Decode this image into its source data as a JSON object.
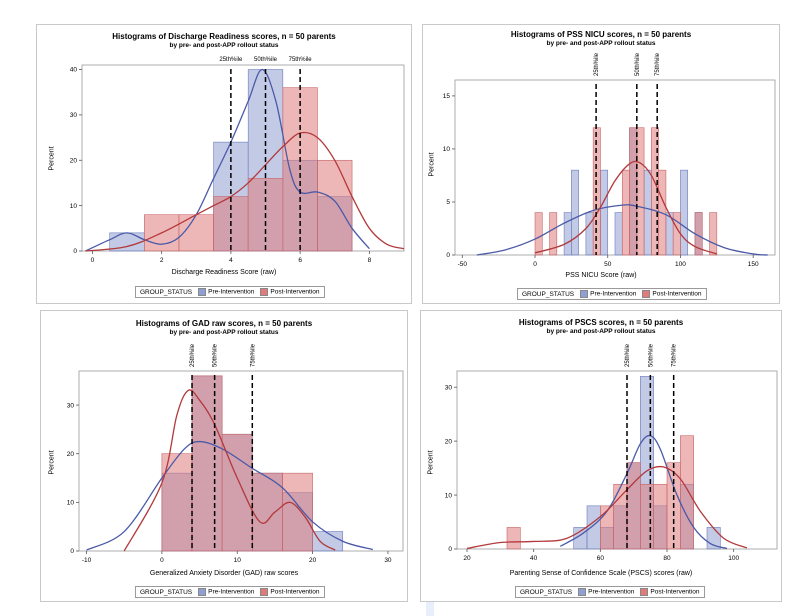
{
  "legend": {
    "group_label": "GROUP_STATUS",
    "pre_label": "Pre-Intervention",
    "post_label": "Post-Intervention"
  },
  "colors": {
    "pre_fill": "#8f9fd1",
    "pre_line": "#4a5aa8",
    "post_fill": "#e07b7b",
    "post_line": "#b3393b",
    "overlap": "#a05871"
  },
  "chart_data": [
    {
      "type": "bar",
      "title": "Histograms of Discharge Readiness scores, n = 50 parents",
      "subtitle": "by pre- and post-APP rollout status",
      "xlabel": "Discharge Readiness Score (raw)",
      "ylabel": "Percent",
      "xlim": [
        -0.3,
        9.0
      ],
      "ylim": [
        0,
        41
      ],
      "xticks": [
        0,
        2,
        4,
        6,
        8
      ],
      "yticks": [
        0,
        10,
        20,
        30,
        40
      ],
      "percentile_labels": [
        "25th%ile",
        "50th%ile",
        "75th%ile"
      ],
      "percentile_label_orientation": "horizontal",
      "percentiles": [
        4,
        5,
        6
      ],
      "series": [
        {
          "name": "Pre-Intervention",
          "bins": [
            [
              0.5,
              1.5,
              4
            ],
            [
              1.5,
              2.5,
              0
            ],
            [
              2.5,
              3.5,
              0
            ],
            [
              3.5,
              4.5,
              24
            ],
            [
              4.5,
              5.5,
              40
            ],
            [
              5.5,
              6.5,
              20
            ],
            [
              6.5,
              7.5,
              12
            ]
          ],
          "curve": [
            [
              -0.2,
              0
            ],
            [
              0.5,
              2.5
            ],
            [
              1.0,
              4
            ],
            [
              1.5,
              2.5
            ],
            [
              2.0,
              1.5
            ],
            [
              2.5,
              3
            ],
            [
              3.0,
              8
            ],
            [
              3.5,
              16
            ],
            [
              4.0,
              24
            ],
            [
              4.5,
              33
            ],
            [
              4.9,
              40
            ],
            [
              5.3,
              33
            ],
            [
              5.7,
              18
            ],
            [
              6.0,
              13
            ],
            [
              6.5,
              13
            ],
            [
              7.0,
              11
            ],
            [
              7.5,
              5
            ],
            [
              8.0,
              0.5
            ]
          ]
        },
        {
          "name": "Post-Intervention",
          "bins": [
            [
              1.5,
              2.5,
              8
            ],
            [
              2.5,
              3.5,
              8
            ],
            [
              3.5,
              4.5,
              12
            ],
            [
              4.5,
              5.5,
              16
            ],
            [
              5.5,
              6.5,
              36
            ],
            [
              6.5,
              7.5,
              20
            ]
          ],
          "curve": [
            [
              -0.2,
              0
            ],
            [
              1.0,
              1
            ],
            [
              2.0,
              4
            ],
            [
              3.0,
              8
            ],
            [
              3.5,
              10
            ],
            [
              4.0,
              12
            ],
            [
              4.5,
              15
            ],
            [
              5.0,
              19
            ],
            [
              5.5,
              23
            ],
            [
              6.0,
              26
            ],
            [
              6.5,
              25
            ],
            [
              7.0,
              20
            ],
            [
              7.5,
              12
            ],
            [
              8.0,
              5
            ],
            [
              8.5,
              1.5
            ],
            [
              9.0,
              0.5
            ]
          ]
        }
      ]
    },
    {
      "type": "bar",
      "title": "Histograms of PSS NICU scores, n = 50 parents",
      "subtitle": "by pre- and post-APP rollout status",
      "xlabel": "PSS NICU Score (raw)",
      "ylabel": "Percent",
      "xlim": [
        -55,
        165
      ],
      "ylim": [
        0,
        16.5
      ],
      "xticks": [
        -50,
        0,
        50,
        100,
        150
      ],
      "yticks": [
        0,
        5,
        10,
        15
      ],
      "percentile_labels": [
        "25th%ile",
        "50th%ile",
        "75th%ile"
      ],
      "percentile_label_orientation": "vertical",
      "percentiles": [
        42,
        70,
        84
      ],
      "series": [
        {
          "name": "Pre-Intervention",
          "bins": [
            [
              20,
              25,
              4
            ],
            [
              25,
              30,
              8
            ],
            [
              35,
              40,
              4
            ],
            [
              45,
              50,
              8
            ],
            [
              55,
              60,
              4
            ],
            [
              65,
              70,
              12
            ],
            [
              75,
              80,
              8
            ],
            [
              90,
              95,
              4
            ],
            [
              100,
              105,
              8
            ],
            [
              110,
              115,
              4
            ]
          ],
          "curve": [
            [
              -40,
              0
            ],
            [
              -20,
              0.5
            ],
            [
              0,
              1.5
            ],
            [
              20,
              3
            ],
            [
              40,
              4.2
            ],
            [
              60,
              4.7
            ],
            [
              70,
              4.6
            ],
            [
              90,
              3.8
            ],
            [
              110,
              2
            ],
            [
              130,
              0.7
            ],
            [
              150,
              0.1
            ],
            [
              160,
              0
            ]
          ]
        },
        {
          "name": "Post-Intervention",
          "bins": [
            [
              0,
              5,
              4
            ],
            [
              10,
              15,
              4
            ],
            [
              40,
              45,
              12
            ],
            [
              60,
              65,
              8
            ],
            [
              65,
              70,
              12
            ],
            [
              70,
              75,
              12
            ],
            [
              80,
              85,
              12
            ],
            [
              85,
              90,
              8
            ],
            [
              95,
              100,
              4
            ],
            [
              110,
              115,
              4
            ],
            [
              120,
              125,
              4
            ]
          ],
          "curve": [
            [
              0,
              0.2
            ],
            [
              20,
              1
            ],
            [
              35,
              2.5
            ],
            [
              45,
              4.5
            ],
            [
              55,
              7
            ],
            [
              65,
              8.6
            ],
            [
              72,
              8.7
            ],
            [
              80,
              7.5
            ],
            [
              90,
              4.5
            ],
            [
              100,
              2
            ],
            [
              110,
              0.8
            ],
            [
              125,
              0.1
            ]
          ]
        }
      ]
    },
    {
      "type": "bar",
      "title": "Histograms of GAD raw scores, n = 50 parents",
      "subtitle": "by pre- and post-APP rollout status",
      "xlabel": "Generalized Anxiety Disorder (GAD) raw scores",
      "ylabel": "Percent",
      "xlim": [
        -11,
        32
      ],
      "ylim": [
        0,
        37
      ],
      "xticks": [
        -10,
        0,
        10,
        20,
        30
      ],
      "yticks": [
        0,
        10,
        20,
        30
      ],
      "percentile_labels": [
        "25th%ile",
        "50th%ile",
        "75th%ile"
      ],
      "percentile_label_orientation": "vertical",
      "percentiles": [
        4,
        7,
        12
      ],
      "series": [
        {
          "name": "Pre-Intervention",
          "bins": [
            [
              0,
              4,
              16
            ],
            [
              4,
              8,
              36
            ],
            [
              8,
              12,
              24
            ],
            [
              12,
              16,
              16
            ],
            [
              16,
              20,
              12
            ],
            [
              20,
              24,
              4
            ]
          ],
          "curve": [
            [
              -10,
              0.2
            ],
            [
              -5,
              4
            ],
            [
              0,
              15
            ],
            [
              3,
              21
            ],
            [
              5,
              22.5
            ],
            [
              8,
              21
            ],
            [
              12,
              17
            ],
            [
              16,
              13
            ],
            [
              20,
              6
            ],
            [
              24,
              2
            ],
            [
              28,
              0.3
            ]
          ]
        },
        {
          "name": "Post-Intervention",
          "bins": [
            [
              0,
              4,
              20
            ],
            [
              4,
              8,
              36
            ],
            [
              8,
              12,
              24
            ],
            [
              12,
              16,
              16
            ],
            [
              16,
              20,
              16
            ]
          ],
          "curve": [
            [
              -5,
              0
            ],
            [
              0,
              14
            ],
            [
              2,
              28
            ],
            [
              3.5,
              33
            ],
            [
              5,
              31
            ],
            [
              7,
              26
            ],
            [
              10,
              15
            ],
            [
              13,
              6
            ],
            [
              15,
              8
            ],
            [
              17,
              10
            ],
            [
              19,
              7
            ],
            [
              21,
              2
            ],
            [
              23,
              0.2
            ]
          ]
        }
      ]
    },
    {
      "type": "bar",
      "title": "Histograms of PSCS scores, n = 50 parents",
      "subtitle": "by pre- and post-APP rollout status",
      "xlabel": "Parenting Sense of Confidence Scale (PSCS) scores (raw)",
      "ylabel": "Percent",
      "xlim": [
        17,
        113
      ],
      "ylim": [
        0,
        33
      ],
      "xticks": [
        20,
        40,
        60,
        80,
        100
      ],
      "yticks": [
        0,
        10,
        20,
        30
      ],
      "percentile_labels": [
        "25th%ile",
        "50th%ile",
        "75th%ile"
      ],
      "percentile_label_orientation": "vertical",
      "percentiles": [
        68,
        75,
        82
      ],
      "series": [
        {
          "name": "Pre-Intervention",
          "bins": [
            [
              52,
              56,
              4
            ],
            [
              56,
              60,
              8
            ],
            [
              60,
              64,
              4
            ],
            [
              64,
              68,
              8
            ],
            [
              68,
              72,
              16
            ],
            [
              72,
              76,
              32
            ],
            [
              76,
              80,
              8
            ],
            [
              84,
              88,
              12
            ],
            [
              92,
              96,
              4
            ]
          ],
          "curve": [
            [
              48,
              0.5
            ],
            [
              55,
              3
            ],
            [
              62,
              7
            ],
            [
              68,
              14
            ],
            [
              72,
              19.5
            ],
            [
              75,
              21
            ],
            [
              78,
              18.5
            ],
            [
              83,
              10
            ],
            [
              88,
              4
            ],
            [
              93,
              1
            ],
            [
              98,
              0.1
            ]
          ]
        },
        {
          "name": "Post-Intervention",
          "bins": [
            [
              32,
              36,
              4
            ],
            [
              60,
              64,
              8
            ],
            [
              64,
              68,
              12
            ],
            [
              68,
              72,
              16
            ],
            [
              72,
              76,
              12
            ],
            [
              76,
              80,
              12
            ],
            [
              80,
              84,
              16
            ],
            [
              84,
              88,
              21
            ]
          ],
          "curve": [
            [
              20,
              0.1
            ],
            [
              30,
              1.2
            ],
            [
              40,
              1.4
            ],
            [
              50,
              2
            ],
            [
              60,
              6
            ],
            [
              68,
              11
            ],
            [
              74,
              14.5
            ],
            [
              79,
              15.2
            ],
            [
              84,
              13
            ],
            [
              90,
              7
            ],
            [
              97,
              2
            ],
            [
              104,
              0.2
            ]
          ]
        }
      ]
    }
  ]
}
